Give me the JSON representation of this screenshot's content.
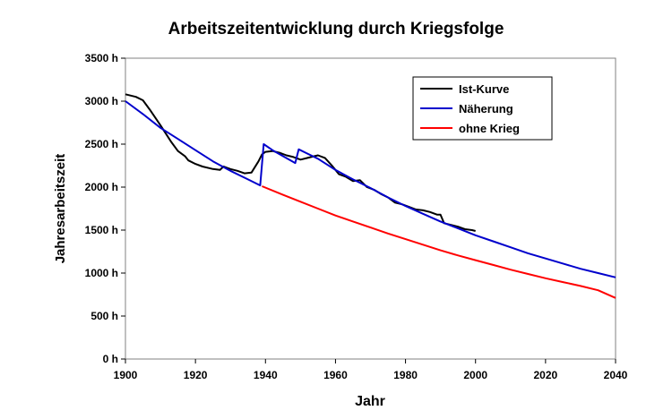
{
  "chart_data": {
    "type": "line",
    "title": "Arbeitszeitentwicklung durch Kriegsfolge",
    "xlabel": "Jahr",
    "ylabel": "Jahresarbeitszeit",
    "xlim": [
      1900,
      2040
    ],
    "ylim": [
      0,
      3500
    ],
    "x_ticks": [
      "1900",
      "1920",
      "1940",
      "1960",
      "1980",
      "2000",
      "2020",
      "2040"
    ],
    "y_ticks": [
      "0 h",
      "500 h",
      "1000 h",
      "1500 h",
      "2000 h",
      "2500 h",
      "3000 h",
      "3500 h"
    ],
    "legend_position": "top-right",
    "grid": "none",
    "series": [
      {
        "name": "Ist-Kurve",
        "color": "#000000",
        "x": [
          1900,
          1903,
          1905,
          1907,
          1910,
          1913,
          1915,
          1917,
          1918,
          1920,
          1922,
          1925,
          1927,
          1928,
          1930,
          1932,
          1934,
          1936,
          1938,
          1939,
          1940,
          1942,
          1944,
          1946,
          1948,
          1950,
          1952,
          1954,
          1955,
          1957,
          1959,
          1961,
          1963,
          1965,
          1967,
          1969,
          1971,
          1973,
          1975,
          1977,
          1979,
          1981,
          1983,
          1985,
          1987,
          1989,
          1990,
          1991,
          1993,
          1995,
          1997,
          1999,
          2000
        ],
        "y": [
          3080,
          3050,
          3010,
          2900,
          2720,
          2530,
          2420,
          2360,
          2310,
          2270,
          2240,
          2210,
          2200,
          2240,
          2210,
          2190,
          2160,
          2170,
          2300,
          2380,
          2410,
          2420,
          2400,
          2370,
          2350,
          2320,
          2340,
          2360,
          2370,
          2340,
          2250,
          2150,
          2120,
          2070,
          2080,
          2000,
          1970,
          1920,
          1880,
          1820,
          1800,
          1770,
          1740,
          1730,
          1710,
          1680,
          1680,
          1580,
          1560,
          1540,
          1510,
          1500,
          1490
        ]
      },
      {
        "name": "Näherung",
        "color": "#0000cc",
        "x": [
          1900,
          1905,
          1910,
          1915,
          1920,
          1925,
          1930,
          1935,
          1938.5,
          1939.5,
          1942,
          1945,
          1948.5,
          1949.5,
          1952,
          1955,
          1960,
          1965,
          1970,
          1975,
          1980,
          1985,
          1990,
          1995,
          2000,
          2005,
          2010,
          2015,
          2020,
          2025,
          2030,
          2035,
          2040
        ],
        "y": [
          3000,
          2850,
          2690,
          2560,
          2430,
          2300,
          2190,
          2090,
          2020,
          2500,
          2430,
          2360,
          2280,
          2440,
          2390,
          2330,
          2200,
          2090,
          1990,
          1880,
          1780,
          1690,
          1600,
          1520,
          1440,
          1370,
          1300,
          1230,
          1170,
          1110,
          1050,
          1000,
          950
        ]
      },
      {
        "name": "ohne Krieg",
        "color": "#ff0000",
        "x": [
          1939,
          1945,
          1950,
          1955,
          1960,
          1965,
          1970,
          1975,
          1980,
          1985,
          1990,
          1995,
          2000,
          2005,
          2010,
          2015,
          2020,
          2025,
          2030,
          2035,
          2040
        ],
        "y": [
          2010,
          1910,
          1830,
          1750,
          1670,
          1600,
          1530,
          1460,
          1395,
          1330,
          1265,
          1205,
          1150,
          1095,
          1040,
          990,
          940,
          895,
          850,
          800,
          710
        ]
      }
    ]
  }
}
